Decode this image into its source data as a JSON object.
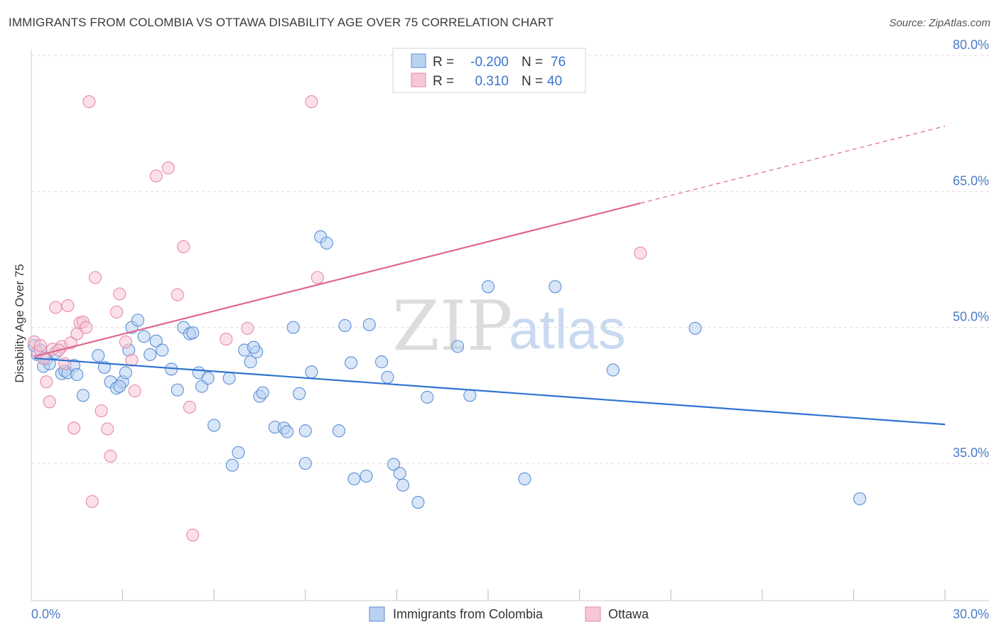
{
  "title": "IMMIGRANTS FROM COLOMBIA VS OTTAWA DISABILITY AGE OVER 75 CORRELATION CHART",
  "source": "Source: ZipAtlas.com",
  "watermark": {
    "zip": "ZIP",
    "atlas": "atlas"
  },
  "colors": {
    "blue_fill": "#b9d2f2",
    "blue_stroke": "#5a8fd6",
    "blue_line": "#2f74d0",
    "pink_fill": "#f8c6d6",
    "pink_stroke": "#e68aa8",
    "pink_line": "#e0668f",
    "grid": "#dddddd",
    "axis": "#cccccc"
  },
  "stats": [
    {
      "series": "blue",
      "r_label": "R =",
      "r_value": "-0.200",
      "n_label": "N =",
      "n_value": "76"
    },
    {
      "series": "pink",
      "r_label": "R =",
      "r_value": "0.310",
      "n_label": "N =",
      "n_value": "40"
    }
  ],
  "chart_data": {
    "type": "scatter",
    "title": "IMMIGRANTS FROM COLOMBIA VS OTTAWA DISABILITY AGE OVER 75 CORRELATION CHART",
    "xlabel": "",
    "ylabel": "Disability Age Over 75",
    "xlim": [
      0,
      30
    ],
    "ylim": [
      20,
      83
    ],
    "x_tick_labels": [
      "0.0%",
      "30.0%"
    ],
    "y_ticks": [
      35,
      50,
      65,
      80
    ],
    "y_tick_labels": [
      "35.0%",
      "50.0%",
      "65.0%",
      "80.0%"
    ],
    "legend": [
      "Immigrants from Colombia",
      "Ottawa"
    ],
    "series": [
      {
        "name": "Immigrants from Colombia",
        "color": "blue",
        "trend": {
          "x0": 0.1,
          "y0": 46.6,
          "x1": 30.0,
          "y1": 39.3,
          "dash_from": null
        },
        "points": [
          [
            0.1,
            48.0
          ],
          [
            0.2,
            47.0
          ],
          [
            0.3,
            47.5
          ],
          [
            0.4,
            45.7
          ],
          [
            0.5,
            46.5
          ],
          [
            0.8,
            47.2
          ],
          [
            1.0,
            44.9
          ],
          [
            1.1,
            45.2
          ],
          [
            1.2,
            45.0
          ],
          [
            1.4,
            45.8
          ],
          [
            1.5,
            44.8
          ],
          [
            1.7,
            42.5
          ],
          [
            2.2,
            46.9
          ],
          [
            2.4,
            45.6
          ],
          [
            2.6,
            44.0
          ],
          [
            2.8,
            43.3
          ],
          [
            3.0,
            44.0
          ],
          [
            3.2,
            47.5
          ],
          [
            3.3,
            50.0
          ],
          [
            3.5,
            50.8
          ],
          [
            3.7,
            49.0
          ],
          [
            3.9,
            47.0
          ],
          [
            4.1,
            48.5
          ],
          [
            4.3,
            47.5
          ],
          [
            4.6,
            45.4
          ],
          [
            4.8,
            43.1
          ],
          [
            5.0,
            50.0
          ],
          [
            5.2,
            49.3
          ],
          [
            5.5,
            45.0
          ],
          [
            5.6,
            43.5
          ],
          [
            5.8,
            44.4
          ],
          [
            6.0,
            39.2
          ],
          [
            6.5,
            44.4
          ],
          [
            6.6,
            34.8
          ],
          [
            6.8,
            36.2
          ],
          [
            7.0,
            47.5
          ],
          [
            7.2,
            46.2
          ],
          [
            7.4,
            47.3
          ],
          [
            7.5,
            42.4
          ],
          [
            7.6,
            42.8
          ],
          [
            8.0,
            39.0
          ],
          [
            8.3,
            38.9
          ],
          [
            8.4,
            38.5
          ],
          [
            8.6,
            50.0
          ],
          [
            8.8,
            42.7
          ],
          [
            9.0,
            38.6
          ],
          [
            9.2,
            45.1
          ],
          [
            9.5,
            60.0
          ],
          [
            9.7,
            59.3
          ],
          [
            10.1,
            38.6
          ],
          [
            10.3,
            50.2
          ],
          [
            10.5,
            46.1
          ],
          [
            10.6,
            33.3
          ],
          [
            11.0,
            33.6
          ],
          [
            11.1,
            50.3
          ],
          [
            11.5,
            46.2
          ],
          [
            11.7,
            44.5
          ],
          [
            11.9,
            34.9
          ],
          [
            12.1,
            33.9
          ],
          [
            12.2,
            32.6
          ],
          [
            12.7,
            30.7
          ],
          [
            13.0,
            42.3
          ],
          [
            14.0,
            47.9
          ],
          [
            14.4,
            42.5
          ],
          [
            15.0,
            54.5
          ],
          [
            16.2,
            33.3
          ],
          [
            17.2,
            54.5
          ],
          [
            19.1,
            45.3
          ],
          [
            21.8,
            49.9
          ],
          [
            27.2,
            31.1
          ],
          [
            9.0,
            35.0
          ],
          [
            0.6,
            46.0
          ],
          [
            3.1,
            45.0
          ],
          [
            5.3,
            49.4
          ],
          [
            7.3,
            47.8
          ],
          [
            2.9,
            43.5
          ]
        ]
      },
      {
        "name": "Ottawa",
        "color": "pink",
        "trend": {
          "x0": 0.1,
          "y0": 46.8,
          "x1": 30.0,
          "y1": 72.2,
          "dash_from": 20.0
        },
        "points": [
          [
            0.1,
            48.4
          ],
          [
            0.2,
            47.3
          ],
          [
            0.3,
            48.0
          ],
          [
            0.4,
            46.6
          ],
          [
            0.5,
            44.0
          ],
          [
            0.6,
            41.8
          ],
          [
            0.7,
            47.6
          ],
          [
            0.8,
            52.2
          ],
          [
            1.0,
            47.9
          ],
          [
            1.2,
            52.4
          ],
          [
            1.3,
            48.3
          ],
          [
            1.4,
            38.9
          ],
          [
            1.5,
            49.3
          ],
          [
            1.6,
            50.5
          ],
          [
            1.7,
            50.6
          ],
          [
            1.8,
            50.0
          ],
          [
            1.9,
            74.9
          ],
          [
            2.0,
            30.8
          ],
          [
            2.1,
            55.5
          ],
          [
            2.3,
            40.8
          ],
          [
            2.5,
            38.8
          ],
          [
            2.6,
            35.8
          ],
          [
            2.8,
            51.7
          ],
          [
            2.9,
            53.7
          ],
          [
            3.1,
            48.4
          ],
          [
            3.3,
            46.4
          ],
          [
            3.4,
            43.0
          ],
          [
            4.1,
            66.7
          ],
          [
            4.5,
            67.6
          ],
          [
            4.8,
            53.6
          ],
          [
            5.0,
            58.9
          ],
          [
            5.2,
            41.2
          ],
          [
            5.3,
            27.1
          ],
          [
            6.4,
            48.7
          ],
          [
            7.1,
            49.9
          ],
          [
            9.2,
            74.9
          ],
          [
            9.4,
            55.5
          ],
          [
            20.0,
            58.2
          ],
          [
            1.1,
            46.0
          ],
          [
            0.9,
            47.5
          ]
        ]
      }
    ]
  }
}
